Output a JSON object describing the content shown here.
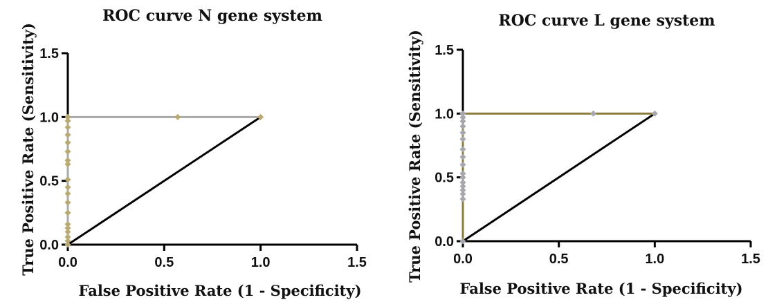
{
  "chart_data": [
    {
      "type": "line",
      "title": "ROC curve N gene system",
      "xlabel": "False Positive Rate (1 - Specificity)",
      "ylabel": "True Positive Rate (Sensitivity)",
      "xlim": [
        0,
        1.5
      ],
      "ylim": [
        0,
        1.5
      ],
      "xticks": [
        0.0,
        0.5,
        1.0,
        1.5
      ],
      "yticks": [
        0.0,
        0.5,
        1.0,
        1.5
      ],
      "xtick_labels": [
        "0.0",
        "0.5",
        "1.0",
        "1.5"
      ],
      "ytick_labels": [
        "0.0",
        "0.5",
        "1.0",
        "1.5"
      ],
      "grid": false,
      "series": [
        {
          "role": "roc-curve",
          "line_color": "#a9a9a9",
          "marker_color": "#b9aa72",
          "marker": "diamond",
          "x": [
            0,
            0,
            0,
            0,
            0,
            0,
            0,
            0,
            0,
            0,
            0,
            0,
            0,
            0,
            0,
            0,
            0,
            0,
            0,
            0,
            0.57,
            1.0
          ],
          "y": [
            0,
            0.03,
            0.06,
            0.1,
            0.13,
            0.16,
            0.25,
            0.33,
            0.4,
            0.45,
            0.51,
            0.63,
            0.66,
            0.73,
            0.8,
            0.86,
            0.92,
            0.97,
            1.0,
            1.0,
            1.0,
            1.0
          ]
        },
        {
          "role": "reference-diagonal",
          "line_color": "#000000",
          "x": [
            0,
            1.0
          ],
          "y": [
            0,
            1.0
          ]
        }
      ]
    },
    {
      "type": "line",
      "title": "ROC curve L gene system",
      "xlabel": "False Positive Rate (1 - Specificity)",
      "ylabel": "True Positive Rate (Sensitivity)",
      "xlim": [
        0,
        1.5
      ],
      "ylim": [
        0,
        1.5
      ],
      "xticks": [
        0.0,
        0.5,
        1.0,
        1.5
      ],
      "yticks": [
        0.0,
        0.5,
        1.0,
        1.5
      ],
      "xtick_labels": [
        "0.0",
        "0.5",
        "1.0",
        "1.5"
      ],
      "ytick_labels": [
        "0.0",
        "0.5",
        "1.0",
        "1.5"
      ],
      "grid": false,
      "series": [
        {
          "role": "roc-curve",
          "line_color": "#8c7d3a",
          "marker_color": "#a6a6ae",
          "marker": "diamond",
          "x": [
            0,
            0,
            0,
            0,
            0,
            0,
            0,
            0,
            0,
            0,
            0,
            0,
            0,
            0,
            0,
            0,
            0,
            0,
            0.68,
            1.0
          ],
          "y": [
            0,
            0.33,
            0.37,
            0.4,
            0.43,
            0.46,
            0.5,
            0.53,
            0.6,
            0.66,
            0.72,
            0.8,
            0.85,
            0.9,
            0.94,
            0.97,
            1.0,
            1.0,
            1.0,
            1.0
          ]
        },
        {
          "role": "reference-diagonal",
          "line_color": "#000000",
          "x": [
            0,
            1.0
          ],
          "y": [
            0,
            1.0
          ]
        }
      ]
    }
  ]
}
